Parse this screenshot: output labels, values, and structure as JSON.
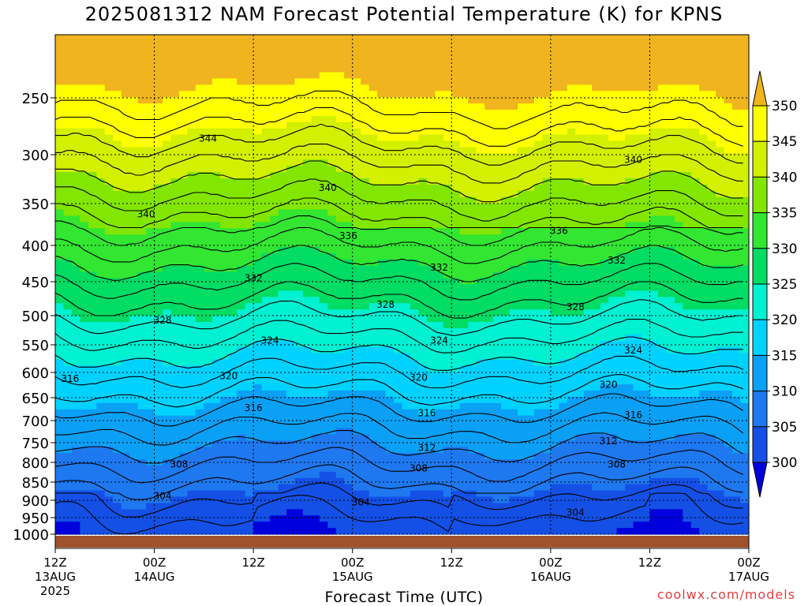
{
  "chart_data": {
    "type": "heatmap",
    "title": "2025081312 NAM Forecast Potential Temperature (K) for KPNS",
    "xlabel": "Forecast Time (UTC)",
    "ylabel": "",
    "credit": "coolwx.com/models",
    "y_axis": {
      "scale": "pressure (reversed, log-like)",
      "ticks": [
        250,
        300,
        350,
        400,
        450,
        500,
        550,
        600,
        650,
        700,
        750,
        800,
        850,
        900,
        950,
        1000
      ]
    },
    "x_axis": {
      "ticks": [
        {
          "hour": 0,
          "label": "12Z",
          "sub": "13AUG",
          "sub2": "2025"
        },
        {
          "hour": 12,
          "label": "00Z",
          "sub": "14AUG",
          "sub2": ""
        },
        {
          "hour": 24,
          "label": "12Z",
          "sub": "",
          "sub2": ""
        },
        {
          "hour": 36,
          "label": "00Z",
          "sub": "15AUG",
          "sub2": ""
        },
        {
          "hour": 48,
          "label": "12Z",
          "sub": "",
          "sub2": ""
        },
        {
          "hour": 60,
          "label": "00Z",
          "sub": "16AUG",
          "sub2": ""
        },
        {
          "hour": 72,
          "label": "12Z",
          "sub": "",
          "sub2": ""
        },
        {
          "hour": 84,
          "label": "00Z",
          "sub": "17AUG",
          "sub2": ""
        }
      ]
    },
    "colorbar": {
      "levels": [
        300,
        305,
        310,
        315,
        320,
        325,
        330,
        335,
        340,
        345,
        350
      ],
      "colors": [
        "#0000dc",
        "#1450e6",
        "#1e78f0",
        "#0aa0f5",
        "#00d2ff",
        "#00f0d2",
        "#00dc64",
        "#32e632",
        "#82e600",
        "#d2f000",
        "#ffff00",
        "#f0b41e"
      ]
    },
    "contour_labels": [
      {
        "value": 344,
        "hour": 18.5,
        "p": 285
      },
      {
        "value": 340,
        "hour": 11,
        "p": 362
      },
      {
        "value": 340,
        "hour": 33,
        "p": 333
      },
      {
        "value": 340,
        "hour": 70,
        "p": 305
      },
      {
        "value": 336,
        "hour": 35.5,
        "p": 388
      },
      {
        "value": 336,
        "hour": 61,
        "p": 382
      },
      {
        "value": 332,
        "hour": 24,
        "p": 445
      },
      {
        "value": 332,
        "hour": 46.5,
        "p": 430
      },
      {
        "value": 332,
        "hour": 68,
        "p": 420
      },
      {
        "value": 328,
        "hour": 13,
        "p": 508
      },
      {
        "value": 328,
        "hour": 40,
        "p": 483
      },
      {
        "value": 328,
        "hour": 63,
        "p": 487
      },
      {
        "value": 324,
        "hour": 26,
        "p": 542
      },
      {
        "value": 324,
        "hour": 46.5,
        "p": 542
      },
      {
        "value": 324,
        "hour": 70,
        "p": 560
      },
      {
        "value": 320,
        "hour": 21,
        "p": 607
      },
      {
        "value": 320,
        "hour": 44,
        "p": 610
      },
      {
        "value": 320,
        "hour": 67,
        "p": 624
      },
      {
        "value": 316,
        "hour": 1.8,
        "p": 612
      },
      {
        "value": 316,
        "hour": 24,
        "p": 672
      },
      {
        "value": 316,
        "hour": 45,
        "p": 683
      },
      {
        "value": 316,
        "hour": 70,
        "p": 688
      },
      {
        "value": 312,
        "hour": 45,
        "p": 763
      },
      {
        "value": 312,
        "hour": 67,
        "p": 746
      },
      {
        "value": 308,
        "hour": 15,
        "p": 805
      },
      {
        "value": 308,
        "hour": 44,
        "p": 815
      },
      {
        "value": 308,
        "hour": 68,
        "p": 805
      },
      {
        "value": 304,
        "hour": 13,
        "p": 888
      },
      {
        "value": 304,
        "hour": 37,
        "p": 905
      },
      {
        "value": 304,
        "hour": 63,
        "p": 935
      }
    ]
  }
}
